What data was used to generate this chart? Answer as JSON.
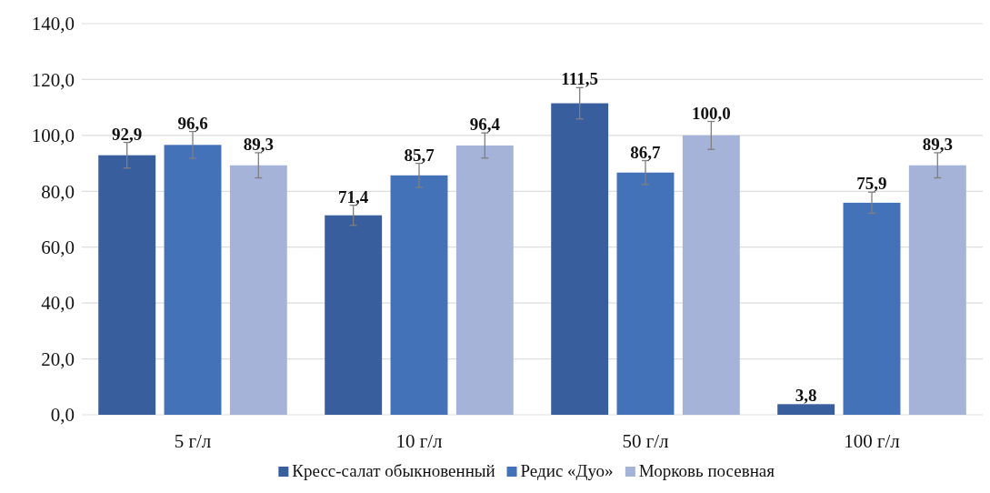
{
  "chart_data": {
    "type": "bar",
    "categories": [
      "5 г/л",
      "10 г/л",
      "50 г/л",
      "100 г/л"
    ],
    "series": [
      {
        "name": "Кресс-салат обыкновенный",
        "color": "#385e9d",
        "values": [
          92.9,
          71.4,
          111.5,
          3.8
        ],
        "value_labels": [
          "92,9",
          "71,4",
          "111,5",
          "3,8"
        ],
        "errors": [
          4.6,
          3.6,
          5.6,
          null
        ]
      },
      {
        "name": "Редис «Дуо»",
        "color": "#4472b9",
        "values": [
          96.6,
          85.7,
          86.7,
          75.9
        ],
        "value_labels": [
          "96,6",
          "85,7",
          "86,7",
          "75,9"
        ],
        "errors": [
          4.8,
          4.3,
          4.3,
          3.8
        ]
      },
      {
        "name": "Морковь посевная",
        "color": "#a5b3d8",
        "values": [
          89.3,
          96.4,
          100.0,
          89.3
        ],
        "value_labels": [
          "89,3",
          "96,4",
          "100,0",
          "89,3"
        ],
        "errors": [
          4.5,
          4.5,
          5.0,
          4.5
        ]
      }
    ],
    "ylim": [
      0,
      140
    ],
    "yticks": [
      {
        "value": 0,
        "label": "0,0"
      },
      {
        "value": 20,
        "label": "20,0"
      },
      {
        "value": 40,
        "label": "40,0"
      },
      {
        "value": 60,
        "label": "60,0"
      },
      {
        "value": 80,
        "label": "80,0"
      },
      {
        "value": 100,
        "label": "100,0"
      },
      {
        "value": 120,
        "label": "120,0"
      },
      {
        "value": 140,
        "label": "140,0"
      }
    ],
    "grid": "y",
    "legend": "bottom"
  }
}
